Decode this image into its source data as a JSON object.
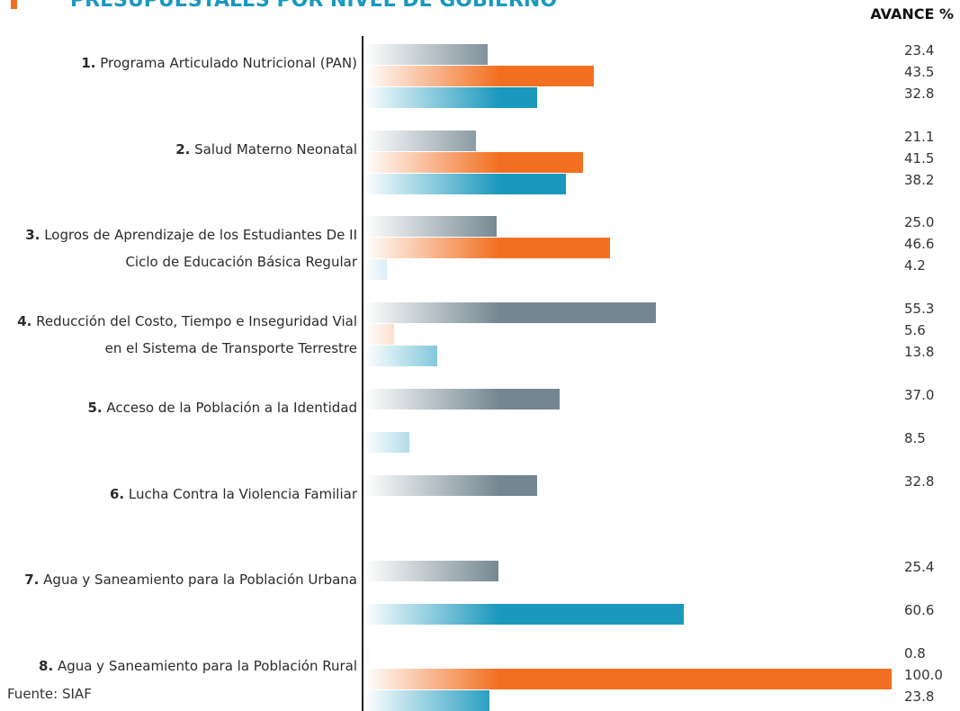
{
  "chart_data": {
    "type": "bar",
    "orientation": "horizontal",
    "title": "PRESUPUESTALES POR NIVEL DE GOBIERNO",
    "value_header": "AVANCE %",
    "source": "Fuente: SIAF",
    "category_numbers": [
      "1.",
      "2.",
      "3.",
      "4.",
      "5.",
      "6.",
      "7.",
      "8."
    ],
    "categories": [
      "Programa Articulado Nutricional  (PAN)",
      "Salud Materno Neonatal",
      "Logros de Aprendizaje de los Estudiantes De II Ciclo de Educación Básica Regular",
      "Reducción del Costo, Tiempo e Inseguridad Vial en el Sistema de Transporte Terrestre",
      "Acceso de la Población a la Identidad",
      "Lucha Contra la Violencia Familiar",
      "Agua y Saneamiento para la Población Urbana",
      "Agua y Saneamiento para la Población Rural"
    ],
    "xlim": [
      0,
      100
    ],
    "series": [
      {
        "color": "#748791",
        "values": [
          23.4,
          21.1,
          25.0,
          55.3,
          37.0,
          32.8,
          25.4,
          0.8
        ],
        "value_labels": [
          "23.4",
          "21.1",
          "25.0",
          "55.3",
          "37.0",
          "32.8",
          "25.4",
          "0.8"
        ]
      },
      {
        "color": "#f26f21",
        "values": [
          43.5,
          41.5,
          46.6,
          5.6,
          null,
          null,
          null,
          100.0
        ],
        "value_labels": [
          "43.5",
          "41.5",
          "46.6",
          "5.6",
          null,
          null,
          null,
          "100.0"
        ]
      },
      {
        "color": "#1a98bd",
        "values": [
          32.8,
          38.2,
          4.2,
          13.8,
          8.5,
          null,
          60.6,
          23.8
        ],
        "value_labels": [
          "32.8",
          "38.2",
          "4.2",
          "13.8",
          "8.5",
          null,
          "60.6",
          "23.8"
        ]
      }
    ]
  }
}
